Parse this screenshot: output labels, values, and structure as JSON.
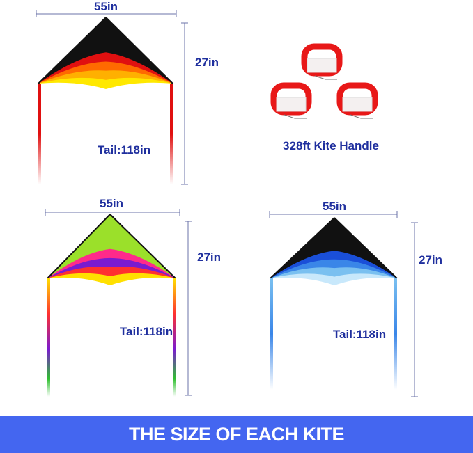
{
  "kites": [
    {
      "width_label": "55in",
      "height_label": "27in",
      "tail_label": "Tail:118in",
      "colors": [
        "#111111",
        "#e01010",
        "#ff6a00",
        "#ffb000",
        "#ffe800"
      ]
    },
    {
      "width_label": "55in",
      "height_label": "27in",
      "tail_label": "Tail:118in",
      "colors": [
        "#9be02a",
        "#ff2a8a",
        "#7a1bd0",
        "#ff3030",
        "#ffe000"
      ]
    },
    {
      "width_label": "55in",
      "height_label": "27in",
      "tail_label": "Tail:118in",
      "colors": [
        "#111111",
        "#1a4fd8",
        "#3a86e8",
        "#7ac0f0",
        "#c8e8fb"
      ]
    }
  ],
  "handle_label": "328ft Kite Handle",
  "banner": "THE SIZE OF EACH KITE",
  "colors": {
    "label": "#1f2f9e",
    "banner_bg": "#4466f0",
    "handle": "#e81818"
  }
}
